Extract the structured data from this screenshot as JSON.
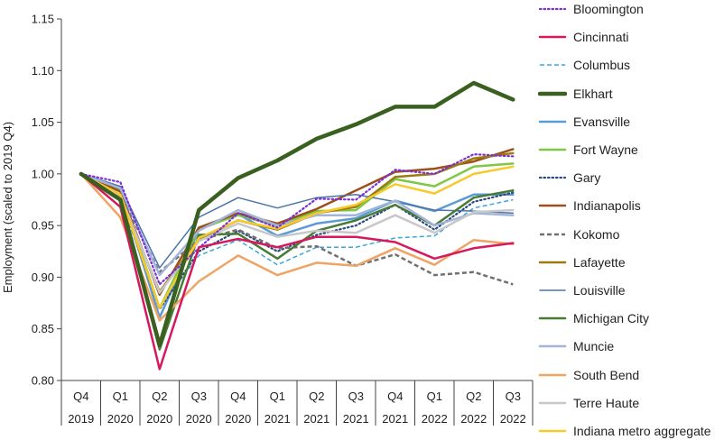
{
  "chart_data": {
    "type": "line",
    "title": "",
    "xlabel": "",
    "ylabel": "Employment (scaled to 2019 Q4)",
    "ylim": [
      0.8,
      1.15
    ],
    "yticks": [
      "0.80",
      "0.85",
      "0.90",
      "0.95",
      "1.00",
      "1.05",
      "1.10",
      "1.15"
    ],
    "categories": [
      {
        "quarter": "Q4",
        "year": "2019"
      },
      {
        "quarter": "Q1",
        "year": "2020"
      },
      {
        "quarter": "Q2",
        "year": "2020"
      },
      {
        "quarter": "Q3",
        "year": "2020"
      },
      {
        "quarter": "Q4",
        "year": "2020"
      },
      {
        "quarter": "Q1",
        "year": "2021"
      },
      {
        "quarter": "Q2",
        "year": "2021"
      },
      {
        "quarter": "Q3",
        "year": "2021"
      },
      {
        "quarter": "Q4",
        "year": "2021"
      },
      {
        "quarter": "Q1",
        "year": "2022"
      },
      {
        "quarter": "Q2",
        "year": "2022"
      },
      {
        "quarter": "Q3",
        "year": "2022"
      }
    ],
    "legend_position": "right",
    "series": [
      {
        "name": "Bloomington",
        "color": "#7b2fd6",
        "style": "dotted",
        "values": [
          1.0,
          0.992,
          0.893,
          0.928,
          0.962,
          0.948,
          0.976,
          0.975,
          1.004,
          1.0,
          1.019,
          1.017
        ]
      },
      {
        "name": "Cincinnati",
        "color": "#d6185e",
        "style": "solid",
        "values": [
          1.0,
          0.968,
          0.811,
          0.929,
          0.937,
          0.929,
          0.939,
          0.939,
          0.934,
          0.918,
          0.928,
          0.933
        ]
      },
      {
        "name": "Columbus",
        "color": "#3aa7dc",
        "style": "dashed",
        "values": [
          1.0,
          0.975,
          0.871,
          0.921,
          0.936,
          0.912,
          0.929,
          0.929,
          0.938,
          0.94,
          0.967,
          0.975
        ]
      },
      {
        "name": "Elkhart",
        "color": "#3a6020",
        "style": "solid-thick",
        "values": [
          1.0,
          0.975,
          0.834,
          0.965,
          0.996,
          1.013,
          1.034,
          1.048,
          1.065,
          1.065,
          1.088,
          1.072
        ]
      },
      {
        "name": "Evansville",
        "color": "#5b9bd5",
        "style": "solid",
        "values": [
          1.0,
          0.984,
          0.861,
          0.946,
          0.961,
          0.94,
          0.952,
          0.957,
          0.974,
          0.964,
          0.98,
          0.98
        ]
      },
      {
        "name": "Fort Wayne",
        "color": "#7ec843",
        "style": "solid",
        "values": [
          1.0,
          0.984,
          0.87,
          0.947,
          0.96,
          0.95,
          0.964,
          0.965,
          0.995,
          0.988,
          1.007,
          1.01
        ]
      },
      {
        "name": "Gary",
        "color": "#2c4a7c",
        "style": "dotted",
        "values": [
          1.0,
          0.979,
          0.869,
          0.925,
          0.945,
          0.925,
          0.941,
          0.95,
          0.97,
          0.946,
          0.973,
          0.982
        ]
      },
      {
        "name": "Indianapolis",
        "color": "#9c4f1a",
        "style": "solid",
        "values": [
          1.0,
          0.983,
          0.883,
          0.948,
          0.962,
          0.952,
          0.966,
          0.984,
          1.002,
          1.005,
          1.012,
          1.024
        ]
      },
      {
        "name": "Kokomo",
        "color": "#707070",
        "style": "dashed-thick",
        "values": [
          1.0,
          0.98,
          0.905,
          0.936,
          0.946,
          0.928,
          0.93,
          0.911,
          0.922,
          0.902,
          0.905,
          0.893
        ]
      },
      {
        "name": "Lafayette",
        "color": "#9c7c10",
        "style": "solid",
        "values": [
          1.0,
          0.978,
          0.886,
          0.937,
          0.955,
          0.946,
          0.962,
          0.968,
          0.997,
          1.0,
          1.015,
          1.02
        ]
      },
      {
        "name": "Louisville",
        "color": "#4a73a8",
        "style": "solid-thin",
        "values": [
          1.0,
          0.988,
          0.909,
          0.958,
          0.977,
          0.967,
          0.977,
          0.98,
          0.973,
          0.965,
          0.964,
          0.962
        ]
      },
      {
        "name": "Michigan City",
        "color": "#487b35",
        "style": "solid",
        "values": [
          1.0,
          0.976,
          0.83,
          0.941,
          0.942,
          0.918,
          0.945,
          0.955,
          0.97,
          0.95,
          0.977,
          0.984
        ]
      },
      {
        "name": "Muncie",
        "color": "#a2b4d8",
        "style": "solid",
        "values": [
          1.0,
          0.986,
          0.902,
          0.945,
          0.965,
          0.95,
          0.96,
          0.96,
          0.974,
          0.95,
          0.962,
          0.96
        ]
      },
      {
        "name": "South Bend",
        "color": "#f0a464",
        "style": "solid",
        "values": [
          1.0,
          0.958,
          0.858,
          0.896,
          0.921,
          0.902,
          0.914,
          0.911,
          0.928,
          0.912,
          0.936,
          0.932
        ]
      },
      {
        "name": "Terre Haute",
        "color": "#c8c8c8",
        "style": "solid",
        "values": [
          1.0,
          0.979,
          0.885,
          0.935,
          0.952,
          0.939,
          0.945,
          0.943,
          0.96,
          0.943,
          0.963,
          0.965
        ]
      },
      {
        "name": "Indiana metro aggregate",
        "color": "#f7c92c",
        "style": "solid",
        "values": [
          1.0,
          0.98,
          0.87,
          0.938,
          0.955,
          0.947,
          0.962,
          0.97,
          0.99,
          0.981,
          1.0,
          1.007
        ]
      }
    ]
  }
}
